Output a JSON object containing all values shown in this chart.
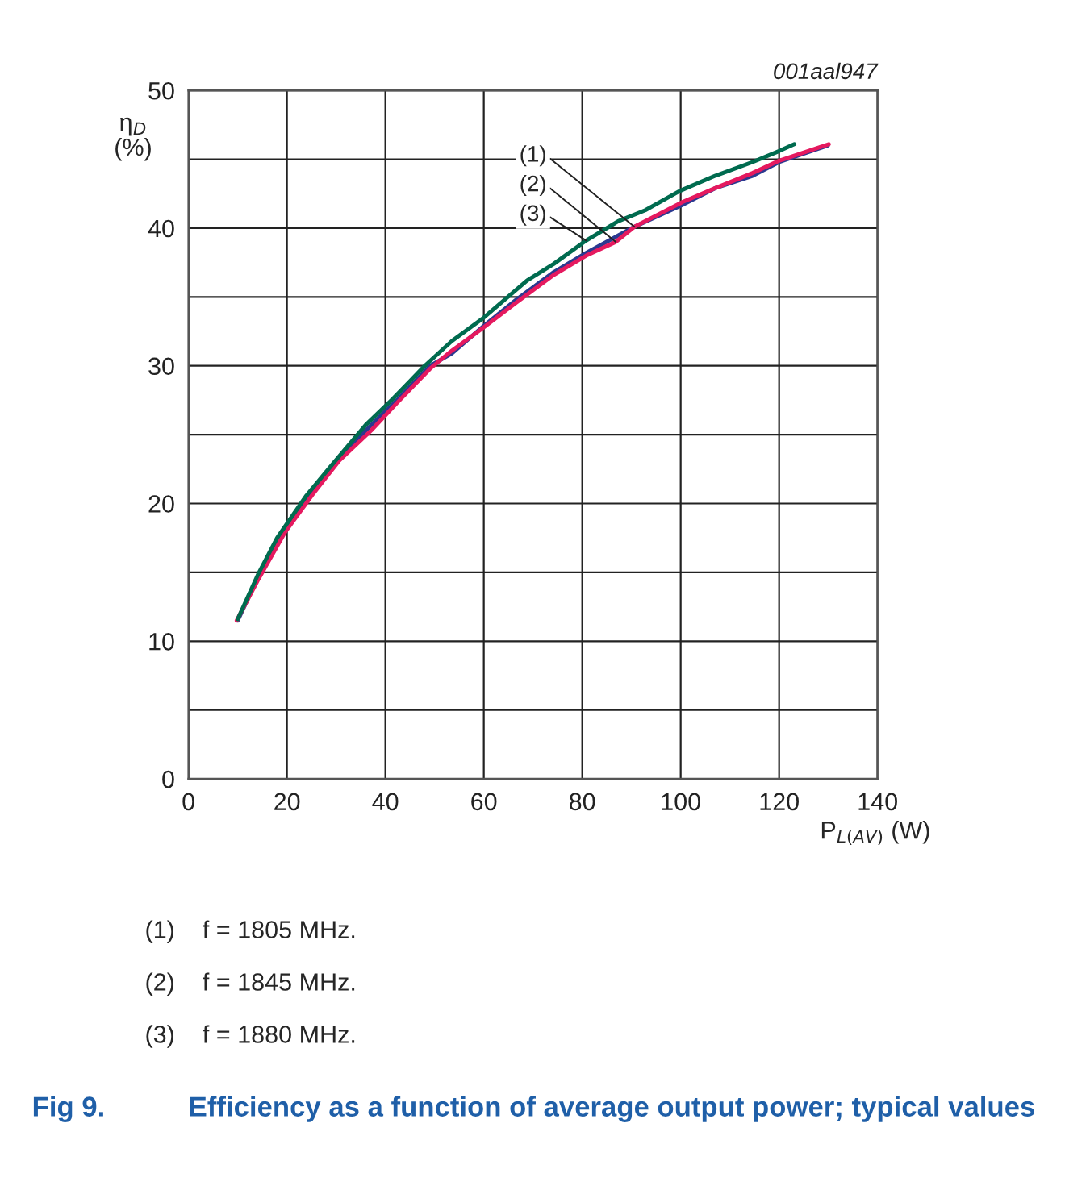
{
  "chart_data": {
    "type": "line",
    "title": "Fig 9.",
    "subtitle": "Efficiency as a function of average output power; typical values",
    "xlabel": "P$_{L(AV)}$ (W)",
    "ylabel": "η$_{D}$\n(%)",
    "xlim": [
      0,
      140
    ],
    "xticks": [
      0,
      20,
      40,
      60,
      80,
      100,
      120,
      140
    ],
    "ylim": [
      0,
      50
    ],
    "yticks": [
      0,
      {
        "value": 5,
        "label": null
      },
      10,
      {
        "value": 15,
        "label": null
      },
      20,
      {
        "value": 25,
        "label": null
      },
      30,
      {
        "value": 35,
        "label": null
      },
      40,
      {
        "value": 45,
        "label": null
      },
      50
    ],
    "grid": true,
    "marker": "none",
    "line_style": "solid",
    "series": [
      {
        "color": "#2b3990",
        "x": [
          10.0,
          14.2,
          19.6,
          25.1,
          30.6,
          36.0,
          42.6,
          49.1,
          53.5,
          60.0,
          66.6,
          74.2,
          80.8,
          90.6,
          100.4,
          107.0,
          114.6,
          120.0,
          129.9
        ],
        "values": [
          11.5,
          14.7,
          18.2,
          20.8,
          23.3,
          25.3,
          27.6,
          30.0,
          30.9,
          32.9,
          34.8,
          36.8,
          38.2,
          40.1,
          41.7,
          42.9,
          43.8,
          44.8,
          46.0
        ]
      },
      {
        "color": "#e5195f",
        "x": [
          9.8,
          14.2,
          19.6,
          25.1,
          30.6,
          37.1,
          42.6,
          49.1,
          53.5,
          60.0,
          66.6,
          74.2,
          80.8,
          86.8,
          90.6,
          100.4,
          107.0,
          114.6,
          120.0,
          130.1
        ],
        "values": [
          11.5,
          14.5,
          17.9,
          20.6,
          23.1,
          25.3,
          27.4,
          29.8,
          31.1,
          32.8,
          34.6,
          36.6,
          38.0,
          39.0,
          40.1,
          41.9,
          42.9,
          44.0,
          44.9,
          46.1
        ]
      },
      {
        "color": "#006b4f",
        "x": [
          10.0,
          14.2,
          18.0,
          24.0,
          28.9,
          36.0,
          41.5,
          48.0,
          53.5,
          60.0,
          68.8,
          74.2,
          80.8,
          87.3,
          92.8,
          99.8,
          107.0,
          114.6,
          120.0,
          123.1
        ],
        "values": [
          11.6,
          14.9,
          17.5,
          20.6,
          22.7,
          25.7,
          27.6,
          30.0,
          31.8,
          33.5,
          36.2,
          37.4,
          39.1,
          40.5,
          41.3,
          42.7,
          43.8,
          44.8,
          45.6,
          46.1
        ]
      }
    ],
    "annotations": [
      "001aal947",
      {
        "text": "(1)",
        "x": 90.6,
        "y": 40.1
      },
      {
        "text": "(2)",
        "x": 86.8,
        "y": 39.0
      },
      {
        "text": "(3)",
        "x": 80.8,
        "y": 39.1
      },
      "(1)    f = 1805 MHz.",
      "(2)    f = 1845 MHz.",
      "(3)    f = 1880 MHz."
    ]
  }
}
